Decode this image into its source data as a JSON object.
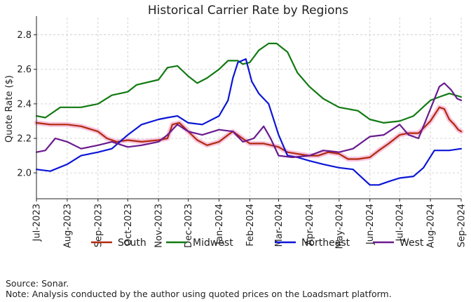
{
  "chart_data": {
    "type": "line",
    "title": "Historical Carrier Rate by Regions",
    "xlabel": "",
    "ylabel": "Quote Rate ($)",
    "ylim": [
      1.85,
      2.9
    ],
    "xlim": [
      "2023-07-01",
      "2024-09-01"
    ],
    "grid": true,
    "legend_position": "bottom",
    "y_ticks": [
      {
        "value": 2.0,
        "label": "2.0"
      },
      {
        "value": 2.2,
        "label": "2.2"
      },
      {
        "value": 2.4,
        "label": "2.4"
      },
      {
        "value": 2.6,
        "label": "2.6"
      },
      {
        "value": 2.8,
        "label": "2.8"
      }
    ],
    "x_ticks": [
      {
        "date": "2023-07-01",
        "label": "Jul-2023"
      },
      {
        "date": "2023-08-01",
        "label": "Aug-2023"
      },
      {
        "date": "2023-09-01",
        "label": "Sep-2023"
      },
      {
        "date": "2023-10-01",
        "label": "Oct-2023"
      },
      {
        "date": "2023-11-01",
        "label": "Nov-2023"
      },
      {
        "date": "2023-12-01",
        "label": "Dec-2023"
      },
      {
        "date": "2024-01-01",
        "label": "Jan-2024"
      },
      {
        "date": "2024-02-01",
        "label": "Feb-2024"
      },
      {
        "date": "2024-03-01",
        "label": "Mar-2024"
      },
      {
        "date": "2024-04-01",
        "label": "Apr-2024"
      },
      {
        "date": "2024-05-01",
        "label": "May-2024"
      },
      {
        "date": "2024-06-01",
        "label": "Jun-2024"
      },
      {
        "date": "2024-07-01",
        "label": "Jul-2024"
      },
      {
        "date": "2024-08-01",
        "label": "Aug-2024"
      },
      {
        "date": "2024-09-01",
        "label": "Sep-2024"
      }
    ],
    "series": [
      {
        "name": "South",
        "color": "#b22a0e",
        "halo_color": "#f5b8d8",
        "points": [
          [
            "2023-07-01",
            2.29
          ],
          [
            "2023-07-15",
            2.28
          ],
          [
            "2023-08-01",
            2.28
          ],
          [
            "2023-08-15",
            2.27
          ],
          [
            "2023-09-01",
            2.24
          ],
          [
            "2023-09-10",
            2.2
          ],
          [
            "2023-09-20",
            2.18
          ],
          [
            "2023-10-01",
            2.19
          ],
          [
            "2023-10-15",
            2.18
          ],
          [
            "2023-11-01",
            2.19
          ],
          [
            "2023-11-10",
            2.2
          ],
          [
            "2023-11-15",
            2.28
          ],
          [
            "2023-11-22",
            2.29
          ],
          [
            "2023-12-01",
            2.24
          ],
          [
            "2023-12-10",
            2.19
          ],
          [
            "2023-12-20",
            2.16
          ],
          [
            "2024-01-01",
            2.18
          ],
          [
            "2024-01-10",
            2.22
          ],
          [
            "2024-01-15",
            2.24
          ],
          [
            "2024-01-22",
            2.21
          ],
          [
            "2024-02-01",
            2.17
          ],
          [
            "2024-02-15",
            2.17
          ],
          [
            "2024-03-01",
            2.15
          ],
          [
            "2024-03-10",
            2.12
          ],
          [
            "2024-03-20",
            2.11
          ],
          [
            "2024-04-01",
            2.1
          ],
          [
            "2024-04-10",
            2.1
          ],
          [
            "2024-04-20",
            2.12
          ],
          [
            "2024-05-01",
            2.11
          ],
          [
            "2024-05-10",
            2.08
          ],
          [
            "2024-05-20",
            2.08
          ],
          [
            "2024-06-01",
            2.09
          ],
          [
            "2024-06-10",
            2.13
          ],
          [
            "2024-06-20",
            2.17
          ],
          [
            "2024-07-01",
            2.22
          ],
          [
            "2024-07-10",
            2.23
          ],
          [
            "2024-07-20",
            2.23
          ],
          [
            "2024-08-01",
            2.3
          ],
          [
            "2024-08-10",
            2.38
          ],
          [
            "2024-08-15",
            2.37
          ],
          [
            "2024-08-20",
            2.31
          ],
          [
            "2024-08-25",
            2.28
          ],
          [
            "2024-08-29",
            2.25
          ],
          [
            "2024-09-01",
            2.24
          ]
        ]
      },
      {
        "name": "Midwest",
        "color": "#127a12",
        "points": [
          [
            "2023-07-01",
            2.33
          ],
          [
            "2023-07-10",
            2.32
          ],
          [
            "2023-07-25",
            2.38
          ],
          [
            "2023-08-15",
            2.38
          ],
          [
            "2023-09-01",
            2.4
          ],
          [
            "2023-09-15",
            2.45
          ],
          [
            "2023-10-01",
            2.47
          ],
          [
            "2023-10-10",
            2.51
          ],
          [
            "2023-11-01",
            2.54
          ],
          [
            "2023-11-10",
            2.61
          ],
          [
            "2023-11-20",
            2.62
          ],
          [
            "2023-12-01",
            2.56
          ],
          [
            "2023-12-10",
            2.52
          ],
          [
            "2023-12-20",
            2.55
          ],
          [
            "2024-01-01",
            2.6
          ],
          [
            "2024-01-10",
            2.65
          ],
          [
            "2024-01-20",
            2.65
          ],
          [
            "2024-01-25",
            2.63
          ],
          [
            "2024-02-01",
            2.64
          ],
          [
            "2024-02-10",
            2.71
          ],
          [
            "2024-02-20",
            2.75
          ],
          [
            "2024-02-28",
            2.75
          ],
          [
            "2024-03-10",
            2.7
          ],
          [
            "2024-03-20",
            2.58
          ],
          [
            "2024-04-01",
            2.5
          ],
          [
            "2024-04-15",
            2.43
          ],
          [
            "2024-05-01",
            2.38
          ],
          [
            "2024-05-20",
            2.36
          ],
          [
            "2024-06-01",
            2.31
          ],
          [
            "2024-06-15",
            2.29
          ],
          [
            "2024-07-01",
            2.3
          ],
          [
            "2024-07-15",
            2.33
          ],
          [
            "2024-08-01",
            2.42
          ],
          [
            "2024-08-10",
            2.44
          ],
          [
            "2024-08-20",
            2.46
          ],
          [
            "2024-09-01",
            2.44
          ]
        ]
      },
      {
        "name": "Northeast",
        "color": "#0b16d6",
        "points": [
          [
            "2023-07-01",
            2.02
          ],
          [
            "2023-07-15",
            2.01
          ],
          [
            "2023-08-01",
            2.05
          ],
          [
            "2023-08-15",
            2.1
          ],
          [
            "2023-09-01",
            2.12
          ],
          [
            "2023-09-15",
            2.14
          ],
          [
            "2023-10-01",
            2.22
          ],
          [
            "2023-10-15",
            2.28
          ],
          [
            "2023-11-01",
            2.31
          ],
          [
            "2023-11-10",
            2.32
          ],
          [
            "2023-11-20",
            2.33
          ],
          [
            "2023-12-01",
            2.29
          ],
          [
            "2023-12-15",
            2.28
          ],
          [
            "2024-01-01",
            2.33
          ],
          [
            "2024-01-10",
            2.42
          ],
          [
            "2024-01-15",
            2.55
          ],
          [
            "2024-01-20",
            2.64
          ],
          [
            "2024-01-28",
            2.66
          ],
          [
            "2024-02-03",
            2.53
          ],
          [
            "2024-02-10",
            2.46
          ],
          [
            "2024-02-20",
            2.4
          ],
          [
            "2024-03-01",
            2.22
          ],
          [
            "2024-03-10",
            2.1
          ],
          [
            "2024-03-20",
            2.09
          ],
          [
            "2024-04-01",
            2.07
          ],
          [
            "2024-04-15",
            2.05
          ],
          [
            "2024-05-01",
            2.03
          ],
          [
            "2024-05-15",
            2.02
          ],
          [
            "2024-06-01",
            1.93
          ],
          [
            "2024-06-10",
            1.93
          ],
          [
            "2024-06-20",
            1.95
          ],
          [
            "2024-07-01",
            1.97
          ],
          [
            "2024-07-15",
            1.98
          ],
          [
            "2024-07-25",
            2.03
          ],
          [
            "2024-08-05",
            2.13
          ],
          [
            "2024-08-20",
            2.13
          ],
          [
            "2024-09-01",
            2.14
          ]
        ]
      },
      {
        "name": "West",
        "color": "#6a1b8f",
        "points": [
          [
            "2023-07-01",
            2.12
          ],
          [
            "2023-07-10",
            2.13
          ],
          [
            "2023-07-20",
            2.2
          ],
          [
            "2023-08-01",
            2.18
          ],
          [
            "2023-08-15",
            2.14
          ],
          [
            "2023-09-01",
            2.16
          ],
          [
            "2023-09-15",
            2.18
          ],
          [
            "2023-10-01",
            2.15
          ],
          [
            "2023-10-15",
            2.16
          ],
          [
            "2023-11-01",
            2.18
          ],
          [
            "2023-11-10",
            2.22
          ],
          [
            "2023-11-20",
            2.28
          ],
          [
            "2023-12-01",
            2.24
          ],
          [
            "2023-12-15",
            2.22
          ],
          [
            "2024-01-01",
            2.25
          ],
          [
            "2024-01-15",
            2.24
          ],
          [
            "2024-01-25",
            2.18
          ],
          [
            "2024-02-05",
            2.2
          ],
          [
            "2024-02-15",
            2.27
          ],
          [
            "2024-02-22",
            2.2
          ],
          [
            "2024-03-01",
            2.1
          ],
          [
            "2024-03-15",
            2.09
          ],
          [
            "2024-04-01",
            2.1
          ],
          [
            "2024-04-15",
            2.13
          ],
          [
            "2024-05-01",
            2.12
          ],
          [
            "2024-05-15",
            2.14
          ],
          [
            "2024-06-01",
            2.21
          ],
          [
            "2024-06-15",
            2.22
          ],
          [
            "2024-07-01",
            2.28
          ],
          [
            "2024-07-10",
            2.22
          ],
          [
            "2024-07-20",
            2.2
          ],
          [
            "2024-08-01",
            2.37
          ],
          [
            "2024-08-10",
            2.5
          ],
          [
            "2024-08-15",
            2.52
          ],
          [
            "2024-08-22",
            2.48
          ],
          [
            "2024-08-28",
            2.43
          ],
          [
            "2024-09-01",
            2.42
          ]
        ]
      }
    ]
  },
  "footnotes": {
    "source": "Source: Sonar.",
    "note": "Note: Analysis conducted by the author using quoted prices on the Loadsmart platform."
  }
}
